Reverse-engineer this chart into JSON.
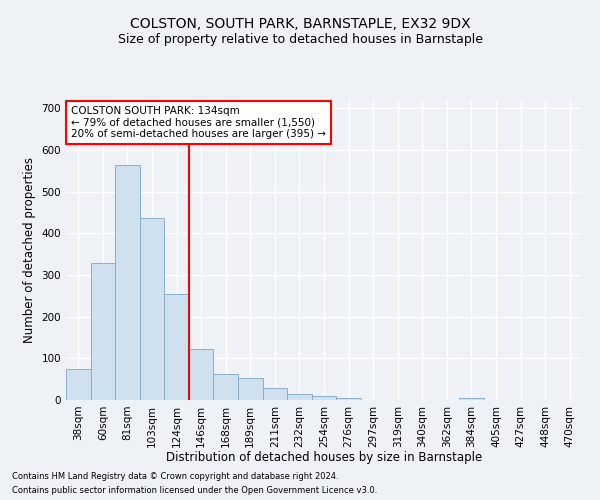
{
  "title": "COLSTON, SOUTH PARK, BARNSTAPLE, EX32 9DX",
  "subtitle": "Size of property relative to detached houses in Barnstaple",
  "xlabel": "Distribution of detached houses by size in Barnstaple",
  "ylabel": "Number of detached properties",
  "footer_line1": "Contains HM Land Registry data © Crown copyright and database right 2024.",
  "footer_line2": "Contains public sector information licensed under the Open Government Licence v3.0.",
  "categories": [
    "38sqm",
    "60sqm",
    "81sqm",
    "103sqm",
    "124sqm",
    "146sqm",
    "168sqm",
    "189sqm",
    "211sqm",
    "232sqm",
    "254sqm",
    "276sqm",
    "297sqm",
    "319sqm",
    "340sqm",
    "362sqm",
    "384sqm",
    "405sqm",
    "427sqm",
    "448sqm",
    "470sqm"
  ],
  "values": [
    75,
    330,
    565,
    437,
    255,
    122,
    62,
    52,
    28,
    15,
    10,
    5,
    0,
    0,
    0,
    0,
    5,
    0,
    0,
    0,
    0
  ],
  "bar_color": "#cfe0ef",
  "bar_edge_color": "#8ab0cc",
  "vline_color": "red",
  "vline_index": 4.5,
  "annotation_text": "COLSTON SOUTH PARK: 134sqm\n← 79% of detached houses are smaller (1,550)\n20% of semi-detached houses are larger (395) →",
  "annotation_box_color": "white",
  "annotation_box_edge_color": "red",
  "ylim": [
    0,
    720
  ],
  "yticks": [
    0,
    100,
    200,
    300,
    400,
    500,
    600,
    700
  ],
  "background_color": "#eef2f7",
  "plot_bg_color": "#eef2f7",
  "grid_color": "white",
  "title_fontsize": 10,
  "subtitle_fontsize": 9,
  "xlabel_fontsize": 8.5,
  "ylabel_fontsize": 8.5,
  "tick_fontsize": 7.5,
  "annot_fontsize": 7.5,
  "footer_fontsize": 6.0
}
